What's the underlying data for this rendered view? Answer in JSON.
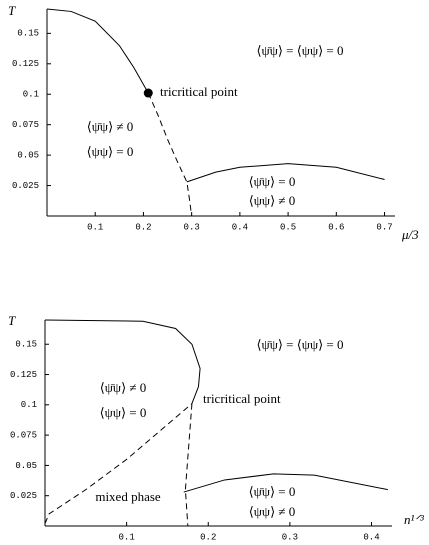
{
  "chart_data": [
    {
      "type": "line",
      "x_label": "μ/3",
      "y_label": "T",
      "xlim": [
        0,
        0.73
      ],
      "ylim": [
        0,
        0.17
      ],
      "xticks": [
        0.1,
        0.2,
        0.3,
        0.4,
        0.5,
        0.6,
        0.7
      ],
      "yticks": [
        0.025,
        0.05,
        0.075,
        0.1,
        0.125,
        0.15
      ],
      "series": [
        {
          "style": "solid",
          "x": [
            0,
            0.05,
            0.1,
            0.15,
            0.18,
            0.21
          ],
          "values": [
            0.17,
            0.168,
            0.16,
            0.14,
            0.122,
            0.101
          ]
        },
        {
          "style": "dashed",
          "x": [
            0.21,
            0.23,
            0.25,
            0.27,
            0.29,
            0.295,
            0.3
          ],
          "values": [
            0.101,
            0.083,
            0.063,
            0.045,
            0.028,
            0.015,
            0
          ]
        },
        {
          "style": "solid",
          "x": [
            0.29,
            0.35,
            0.4,
            0.5,
            0.6,
            0.7
          ],
          "values": [
            0.028,
            0.036,
            0.04,
            0.043,
            0.04,
            0.03
          ]
        },
        {
          "style": "marker",
          "x": [
            0.21
          ],
          "values": [
            0.101
          ]
        }
      ],
      "annotations": [
        "⟨ψ̄ψ⟩ = ⟨ψψ⟩ = 0",
        "tricritical point",
        "⟨ψ̄ψ⟩ ≠ 0",
        "⟨ψψ⟩ = 0",
        "⟨ψ̄ψ⟩ = 0",
        "⟨ψψ⟩ ≠ 0"
      ]
    },
    {
      "type": "line",
      "x_label": "n¹ᐟ³",
      "y_label": "T",
      "xlim": [
        0,
        0.43
      ],
      "ylim": [
        0,
        0.17
      ],
      "xticks": [
        0.1,
        0.2,
        0.3,
        0.4
      ],
      "yticks": [
        0.025,
        0.05,
        0.075,
        0.1,
        0.125,
        0.15
      ],
      "series": [
        {
          "style": "solid",
          "x": [
            0,
            0.12,
            0.16,
            0.18,
            0.19,
            0.188,
            0.18
          ],
          "values": [
            0.17,
            0.169,
            0.163,
            0.15,
            0.13,
            0.115,
            0.101
          ]
        },
        {
          "style": "dashed",
          "x": [
            0,
            0.005,
            0.05,
            0.1,
            0.14,
            0.18
          ],
          "values": [
            0.002,
            0.01,
            0.03,
            0.055,
            0.078,
            0.101
          ]
        },
        {
          "style": "dashed",
          "x": [
            0.18,
            0.172,
            0.175
          ],
          "values": [
            0.101,
            0.03,
            0
          ]
        },
        {
          "style": "solid",
          "x": [
            0.17,
            0.22,
            0.28,
            0.33,
            0.42
          ],
          "values": [
            0.028,
            0.038,
            0.043,
            0.042,
            0.03
          ]
        }
      ],
      "annotations": [
        "⟨ψ̄ψ⟩ = ⟨ψψ⟩ = 0",
        "⟨ψ̄ψ⟩ ≠ 0",
        "⟨ψψ⟩ = 0",
        "tricritical point",
        "mixed phase",
        "⟨ψ̄ψ⟩ = 0",
        "⟨ψψ⟩ ≠ 0"
      ]
    }
  ]
}
